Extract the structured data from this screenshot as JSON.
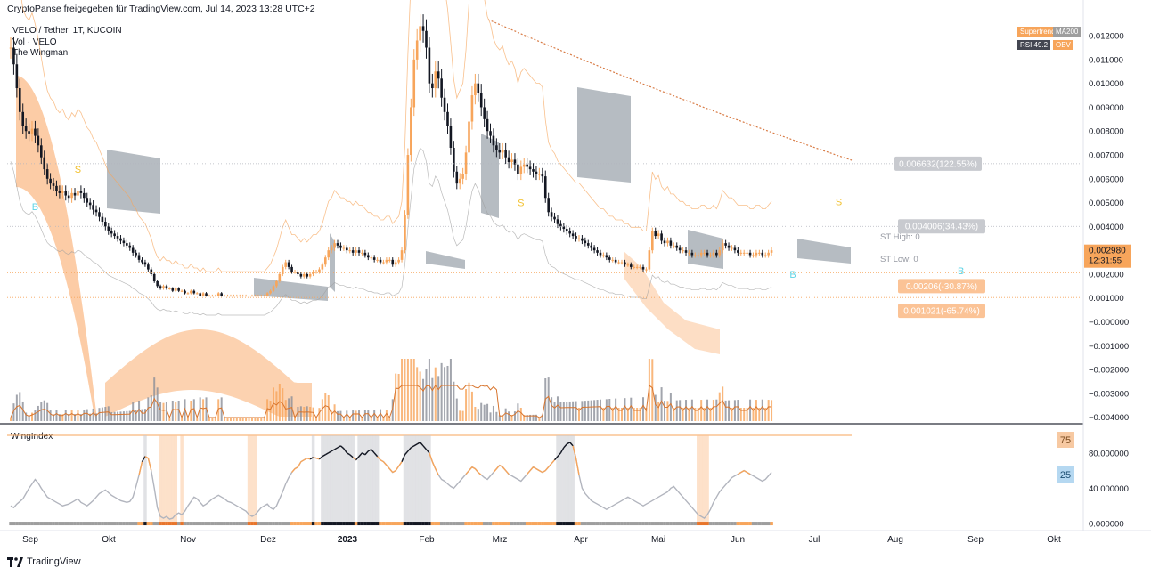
{
  "header": {
    "shared_by": "CryptoPanse freigegeben für TradingView.com, Jul 14, 2023 13:28 UTC+2"
  },
  "legend": {
    "symbol": "VELO / Tether, 1T, KUCOIN",
    "volume": "Vol · VELO",
    "indicator": "The Wingman"
  },
  "indicator_tags": [
    "Supertrend",
    "MA200",
    "RSI 49.2",
    "OBV"
  ],
  "footer": {
    "brand": "TradingView"
  },
  "colors": {
    "orange": "#f7a55b",
    "peach": "#fbc396",
    "gray_cloud": "#9ea5ad",
    "candle_dark": "#131722",
    "accent_b": "#5fd4e6",
    "accent_s": "#f2c12e"
  },
  "chart_data": [
    {
      "type": "candlestick",
      "title": "VELO / Tether, 1T, KUCOIN",
      "x_axis_labels": [
        "Sep",
        "Okt",
        "Nov",
        "Dez",
        "2023",
        "Feb",
        "Mrz",
        "Apr",
        "Mai",
        "Jun",
        "Jul",
        "Aug",
        "Sep",
        "Okt"
      ],
      "y_axis_labels": [
        "0.012000",
        "0.011000",
        "0.010000",
        "0.009000",
        "0.008000",
        "0.007000",
        "0.006000",
        "0.005000",
        "0.004000",
        "0.003000",
        "0.002000",
        "0.001000",
        "−0.000000",
        "−0.001000",
        "−0.002000",
        "−0.003000",
        "−0.004000"
      ],
      "ylim": [
        -0.0042,
        0.0129
      ],
      "last_price": "0.002980",
      "countdown": "12:31:55",
      "price_levels": [
        {
          "value": 0.006632,
          "label": "0.006632(122.55%)",
          "style": "gray"
        },
        {
          "value": 0.004006,
          "label": "0.004006(34.43%)",
          "style": "gray"
        },
        {
          "value": 0.00206,
          "label": "0.00206(-30.87%)",
          "style": "orange"
        },
        {
          "value": 0.001021,
          "label": "0.001021(-65.74%)",
          "style": "orange"
        }
      ],
      "text_labels": [
        "ST High: 0",
        "ST Low: 0"
      ],
      "signals": [
        {
          "day": 22,
          "value": 0.00625,
          "text": "S"
        },
        {
          "day": 8,
          "value": 0.00468,
          "text": "B"
        },
        {
          "day": 167,
          "value": 0.00485,
          "text": "S"
        },
        {
          "day": 271,
          "value": 0.0049,
          "text": "S"
        },
        {
          "day": 256,
          "value": 0.00185,
          "text": "B"
        },
        {
          "day": 311,
          "value": 0.002,
          "text": "B"
        }
      ],
      "closes": [
        0.0115,
        0.0108,
        0.0098,
        0.0088,
        0.0082,
        0.008,
        0.0079,
        0.0081,
        0.0078,
        0.0074,
        0.0069,
        0.0064,
        0.006,
        0.0058,
        0.0057,
        0.0055,
        0.0054,
        0.0055,
        0.0053,
        0.0052,
        0.0054,
        0.0053,
        0.0055,
        0.0054,
        0.0052,
        0.005,
        0.0049,
        0.0047,
        0.0046,
        0.0044,
        0.0042,
        0.004,
        0.0038,
        0.0037,
        0.0036,
        0.0035,
        0.0034,
        0.0033,
        0.0032,
        0.0031,
        0.0029,
        0.0028,
        0.0026,
        0.0025,
        0.0024,
        0.0022,
        0.002,
        0.0017,
        0.0015,
        0.0014,
        0.0015,
        0.0014,
        0.0014,
        0.0013,
        0.0014,
        0.0013,
        0.0013,
        0.0012,
        0.0012,
        0.0013,
        0.0012,
        0.0012,
        0.0011,
        0.0012,
        0.0011,
        0.0011,
        0.0011,
        0.0011,
        0.0012,
        0.0011,
        0.0011,
        0.0011,
        0.0011,
        0.0011,
        0.0011,
        0.0011,
        0.0011,
        0.0011,
        0.0011,
        0.0011,
        0.0011,
        0.0011,
        0.0011,
        0.0011,
        0.0012,
        0.0013,
        0.0015,
        0.0017,
        0.002,
        0.0023,
        0.0025,
        0.0023,
        0.0021,
        0.0021,
        0.002,
        0.0019,
        0.002,
        0.0019,
        0.002,
        0.0021,
        0.0021,
        0.0022,
        0.0024,
        0.0027,
        0.003,
        0.0031,
        0.0033,
        0.0032,
        0.0031,
        0.0031,
        0.003,
        0.003,
        0.0029,
        0.003,
        0.0029,
        0.0029,
        0.0028,
        0.0027,
        0.0027,
        0.0026,
        0.0026,
        0.0025,
        0.0025,
        0.0026,
        0.0026,
        0.0024,
        0.0025,
        0.0026,
        0.003,
        0.0045,
        0.007,
        0.009,
        0.011,
        0.0118,
        0.0124,
        0.0122,
        0.0115,
        0.01,
        0.0098,
        0.0105,
        0.0102,
        0.0094,
        0.0088,
        0.0082,
        0.0073,
        0.0063,
        0.0058,
        0.006,
        0.0062,
        0.0071,
        0.0084,
        0.0095,
        0.01,
        0.0096,
        0.009,
        0.0085,
        0.008,
        0.0078,
        0.0074,
        0.0072,
        0.0071,
        0.0072,
        0.0069,
        0.0067,
        0.0068,
        0.0066,
        0.0062,
        0.0065,
        0.0066,
        0.0065,
        0.0064,
        0.0063,
        0.0062,
        0.0062,
        0.0061,
        0.0052,
        0.0046,
        0.0044,
        0.0043,
        0.0041,
        0.004,
        0.0039,
        0.0038,
        0.0037,
        0.0036,
        0.0035,
        0.0035,
        0.0034,
        0.0033,
        0.0032,
        0.0031,
        0.003,
        0.0029,
        0.0028,
        0.0028,
        0.0027,
        0.0026,
        0.0026,
        0.0025,
        0.0025,
        0.0025,
        0.0024,
        0.0024,
        0.0023,
        0.0023,
        0.0023,
        0.0023,
        0.0022,
        0.0022,
        0.003,
        0.0038,
        0.0036,
        0.0037,
        0.0034,
        0.0033,
        0.0034,
        0.0032,
        0.0032,
        0.0031,
        0.003,
        0.003,
        0.0029,
        0.0029,
        0.0028,
        0.0028,
        0.0028,
        0.0029,
        0.0029,
        0.0028,
        0.0028,
        0.0029,
        0.0028,
        0.003,
        0.0033,
        0.0032,
        0.0031,
        0.0031,
        0.003,
        0.0029,
        0.0029,
        0.0029,
        0.0029,
        0.0028,
        0.0028,
        0.0029,
        0.0029,
        0.0028,
        0.0028,
        0.0029,
        0.003
      ]
    },
    {
      "type": "line",
      "title": "WingIndex",
      "y_axis_labels": [
        "80.000000",
        "40.000000",
        "0.000000"
      ],
      "ylim": [
        -5,
        105
      ],
      "levels": [
        {
          "value": 75,
          "label": "75"
        },
        {
          "value": 25,
          "label": "25"
        }
      ],
      "values": [
        20,
        18,
        22,
        25,
        28,
        34,
        40,
        45,
        50,
        46,
        40,
        35,
        30,
        28,
        26,
        24,
        22,
        20,
        21,
        22,
        24,
        26,
        28,
        24,
        22,
        20,
        23,
        26,
        30,
        34,
        36,
        38,
        35,
        32,
        30,
        28,
        26,
        25,
        24,
        25,
        30,
        42,
        55,
        70,
        76,
        74,
        60,
        40,
        18,
        8,
        6,
        8,
        5,
        6,
        10,
        12,
        10,
        14,
        20,
        25,
        30,
        28,
        24,
        20,
        22,
        25,
        28,
        30,
        32,
        30,
        28,
        25,
        24,
        22,
        20,
        18,
        16,
        14,
        10,
        8,
        10,
        14,
        18,
        20,
        22,
        18,
        16,
        20,
        28,
        36,
        45,
        52,
        58,
        62,
        64,
        70,
        72,
        74,
        73,
        75,
        74,
        73,
        76,
        78,
        80,
        82,
        84,
        86,
        88,
        85,
        80,
        78,
        75,
        72,
        76,
        80,
        78,
        82,
        84,
        80,
        76,
        72,
        70,
        66,
        62,
        58,
        60,
        65,
        70,
        78,
        82,
        86,
        88,
        90,
        92,
        88,
        84,
        80,
        70,
        62,
        55,
        50,
        48,
        45,
        42,
        40,
        44,
        48,
        52,
        56,
        60,
        64,
        62,
        58,
        55,
        52,
        50,
        54,
        58,
        62,
        66,
        64,
        60,
        56,
        54,
        52,
        50,
        48,
        52,
        56,
        60,
        64,
        62,
        60,
        58,
        60,
        64,
        68,
        72,
        76,
        80,
        86,
        90,
        92,
        88,
        74,
        55,
        40,
        34,
        30,
        26,
        24,
        22,
        20,
        18,
        16,
        18,
        20,
        22,
        24,
        26,
        28,
        30,
        28,
        26,
        24,
        22,
        20,
        22,
        24,
        26,
        28,
        30,
        32,
        34,
        36,
        40,
        42,
        38,
        34,
        30,
        26,
        22,
        18,
        14,
        10,
        8,
        6,
        10,
        16,
        24,
        30,
        36,
        40,
        44,
        48,
        52,
        54,
        56,
        58,
        60,
        58,
        56,
        54,
        52,
        50,
        48,
        50,
        54,
        58
      ]
    }
  ]
}
